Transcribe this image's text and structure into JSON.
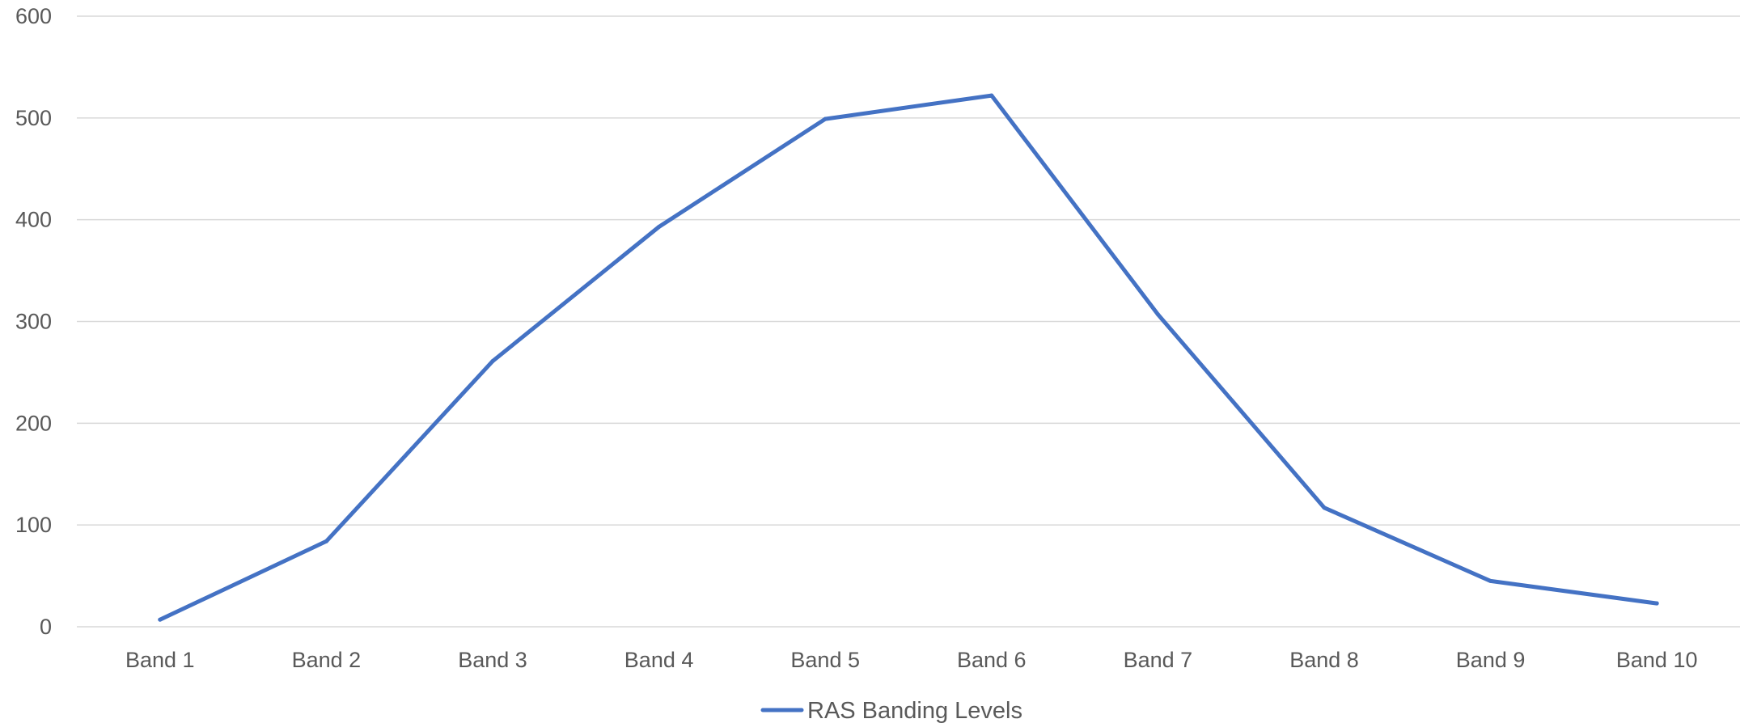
{
  "chart_data": {
    "type": "line",
    "categories": [
      "Band 1",
      "Band 2",
      "Band 3",
      "Band 4",
      "Band 5",
      "Band 6",
      "Band 7",
      "Band 8",
      "Band 9",
      "Band 10"
    ],
    "series": [
      {
        "name": "RAS Banding Levels",
        "color": "#4472c4",
        "values": [
          7,
          84,
          261,
          393,
          499,
          522,
          307,
          117,
          45,
          23
        ]
      }
    ],
    "y_ticks": [
      0,
      100,
      200,
      300,
      400,
      500,
      600
    ],
    "ylim": [
      0,
      600
    ],
    "grid": true,
    "legend_position": "bottom"
  }
}
